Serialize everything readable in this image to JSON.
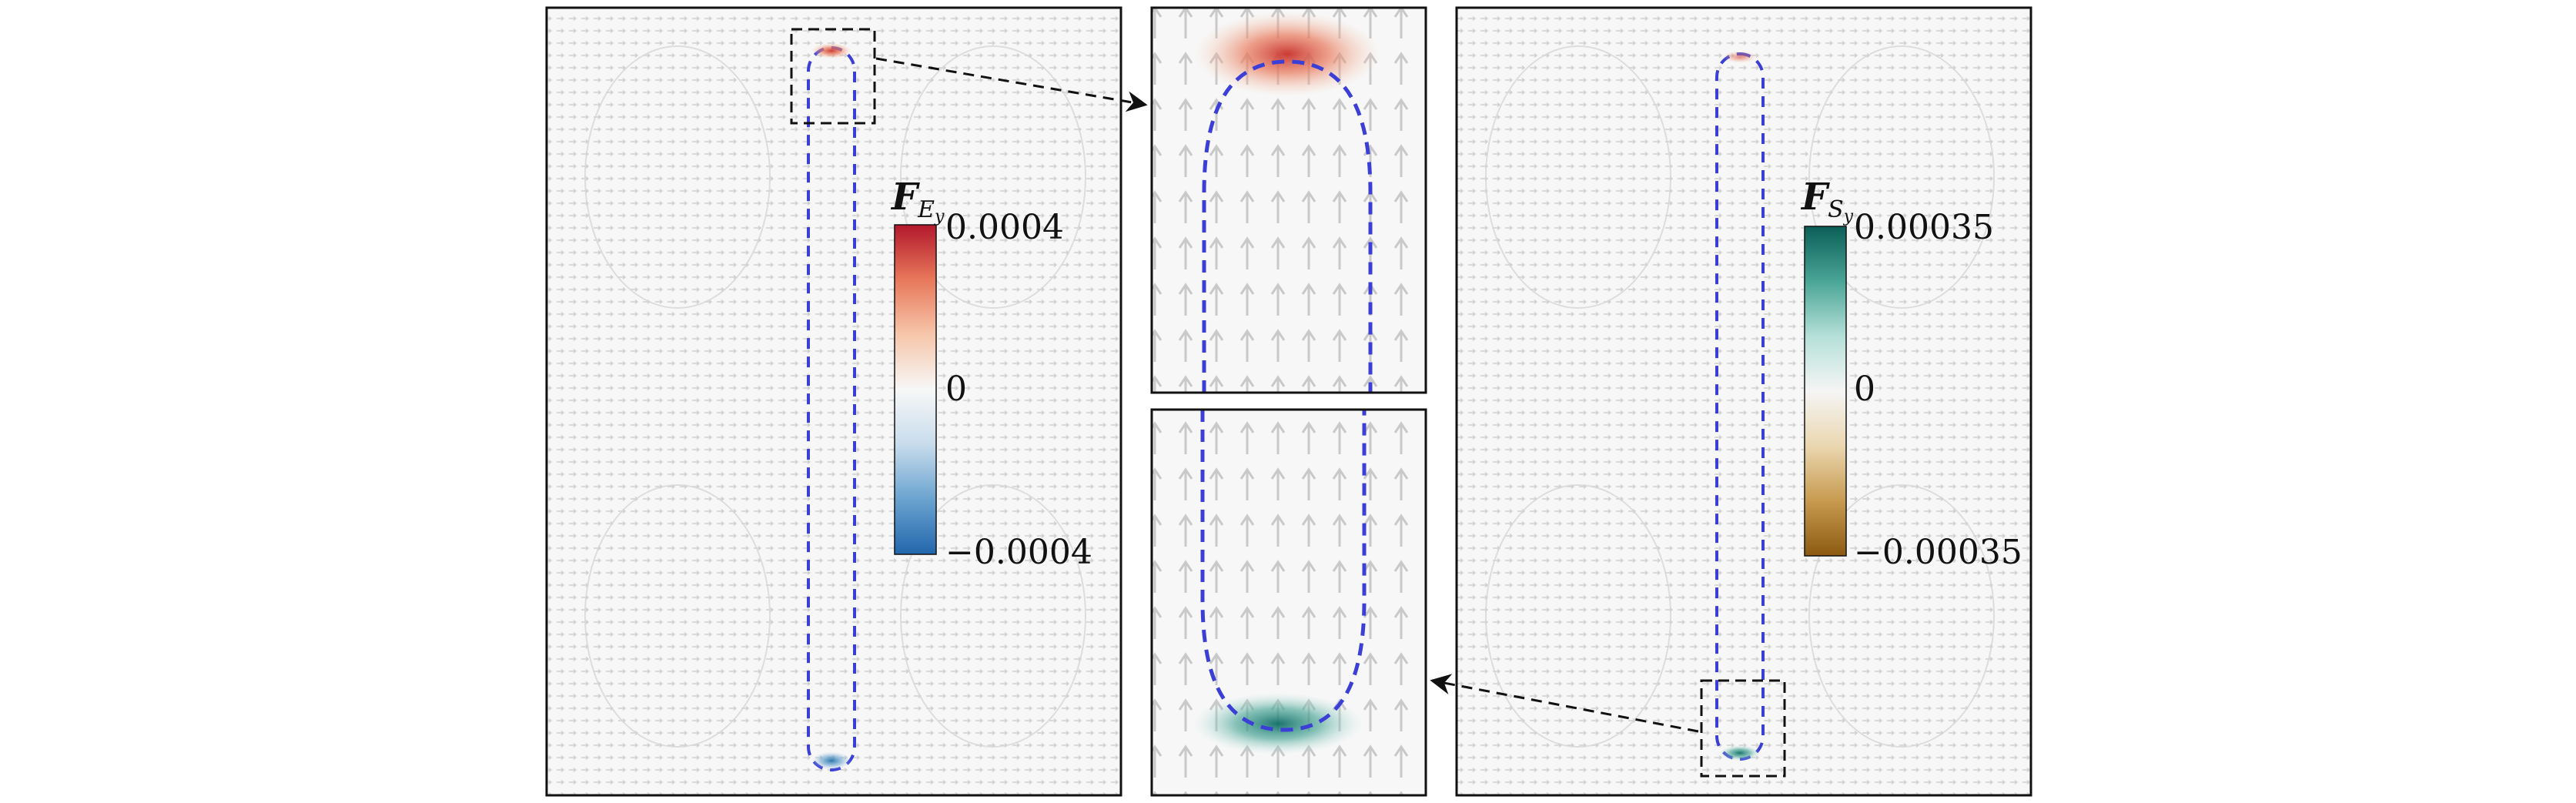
{
  "panels": [
    {
      "id": "left",
      "colorbar": {
        "symbol": "F",
        "subscript": "E",
        "subsubscript": "y",
        "max_label": "0.0004",
        "mid_label": "0",
        "min_label": "−0.0004",
        "colors": [
          "#2166ac",
          "#6aa3cf",
          "#c8dcec",
          "#f7f7f7",
          "#f6c6aa",
          "#e8785b",
          "#b2182b"
        ]
      }
    },
    {
      "id": "right",
      "colorbar": {
        "symbol": "F",
        "subscript": "S",
        "subsubscript": "y",
        "max_label": "0.00035",
        "mid_label": "0",
        "min_label": "−0.00035",
        "colors": [
          "#8c5a12",
          "#c79a50",
          "#ead7b0",
          "#f5f5f5",
          "#b5e0d8",
          "#4aa596",
          "#0b5e57"
        ]
      }
    }
  ],
  "colors": {
    "interface": "#3b3fd6",
    "vectors": "#c9c9c9",
    "frame": "#111111",
    "hot_spot": "#d9442e",
    "cold_spot": "#2e8fbf",
    "teal_spot": "#1a9a8e"
  },
  "icons": {
    "zoom_arrow_top": "arrowhead-right",
    "zoom_arrow_bottom": "arrowhead-left"
  }
}
